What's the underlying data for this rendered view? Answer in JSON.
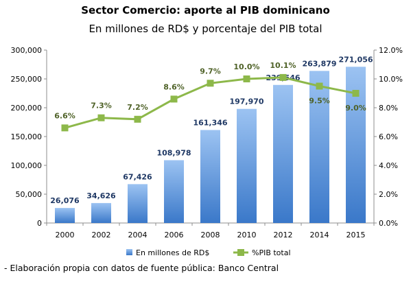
{
  "title": "Sector Comercio: aporte al PIB dominicano",
  "subtitle": "En millones de RD$ y porcentaje del PIB total",
  "source_note": "- Elaboración propia con datos de fuente pública: Banco Central",
  "colors": {
    "bar_top": "#9cc3f2",
    "bar_bottom": "#3a78c9",
    "line": "#8db84a",
    "bar_label": "#1f3864",
    "pct_label": "#4f6228",
    "axis": "#8c8c8c"
  },
  "chart_data": {
    "type": "bar+line",
    "categories": [
      "2000",
      "2002",
      "2004",
      "2006",
      "2008",
      "2010",
      "2012",
      "2014",
      "2015"
    ],
    "series": [
      {
        "name": "En millones de RD$",
        "type": "bar",
        "axis": "left",
        "values": [
          26076,
          34626,
          67426,
          108978,
          161346,
          197970,
          239546,
          263879,
          271056
        ],
        "labels": [
          "26,076",
          "34,626",
          "67,426",
          "108,978",
          "161,346",
          "197,970",
          "239,546",
          "263,879",
          "271,056"
        ]
      },
      {
        "name": "%PIB total",
        "type": "line",
        "axis": "right",
        "values": [
          6.6,
          7.3,
          7.2,
          8.6,
          9.7,
          10.0,
          10.1,
          9.5,
          9.0
        ],
        "labels": [
          "6.6%",
          "7.3%",
          "7.2%",
          "8.6%",
          "9.7%",
          "10.0%",
          "10.1%",
          "9.5%",
          "9.0%"
        ]
      }
    ],
    "y_left": {
      "lim": [
        0,
        300000
      ],
      "ticks": [
        0,
        50000,
        100000,
        150000,
        200000,
        250000,
        300000
      ],
      "tick_labels": [
        "0",
        "50,000",
        "100,000",
        "150,000",
        "200,000",
        "250,000",
        "300,000"
      ]
    },
    "y_right": {
      "lim": [
        0,
        12
      ],
      "ticks": [
        0,
        2,
        4,
        6,
        8,
        10,
        12
      ],
      "tick_labels": [
        "0.0%",
        "2.0%",
        "4.0%",
        "6.0%",
        "8.0%",
        "10.0%",
        "12.0%"
      ]
    },
    "grid": false,
    "legend": "bottom"
  }
}
